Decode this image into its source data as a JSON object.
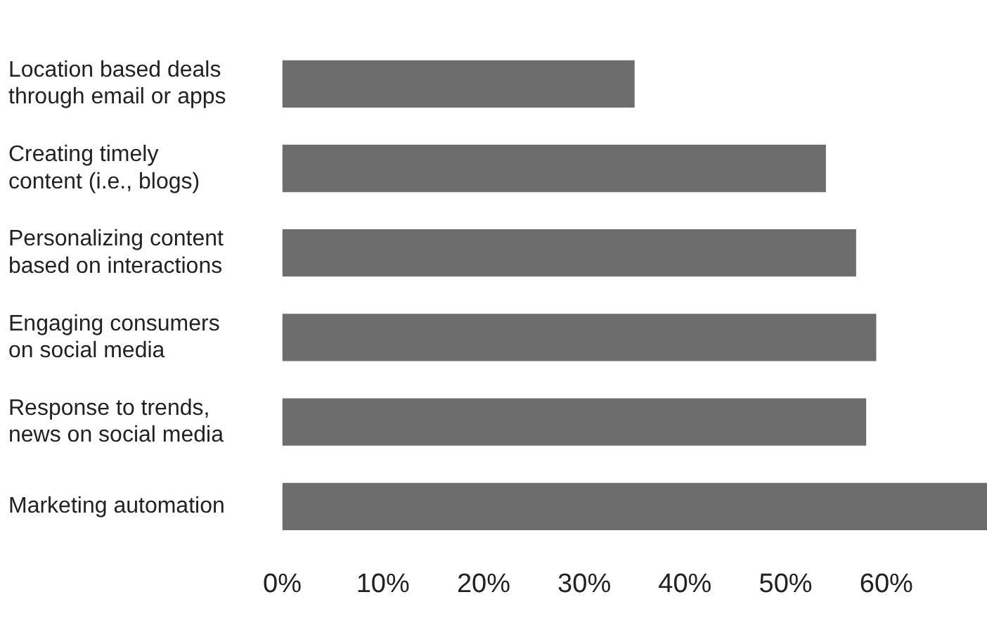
{
  "chart_data": {
    "type": "bar",
    "orientation": "horizontal",
    "categories": [
      "Location based deals\nthrough email or apps",
      "Creating timely\ncontent (i.e., blogs)",
      "Personalizing content\nbased on interactions",
      "Engaging consumers\non social media",
      "Response to trends,\nnews on social media",
      "Marketing automation"
    ],
    "values": [
      35,
      54,
      57,
      59,
      58,
      70
    ],
    "color": "#6d6d6d",
    "xlim": [
      0,
      70
    ],
    "xticks": [
      {
        "value": 0,
        "label": "0%"
      },
      {
        "value": 10,
        "label": "10%"
      },
      {
        "value": 20,
        "label": "20%"
      },
      {
        "value": 30,
        "label": "30%"
      },
      {
        "value": 40,
        "label": "40%"
      },
      {
        "value": 50,
        "label": "50%"
      },
      {
        "value": 60,
        "label": "60%"
      }
    ],
    "grid": false,
    "legend": false
  }
}
